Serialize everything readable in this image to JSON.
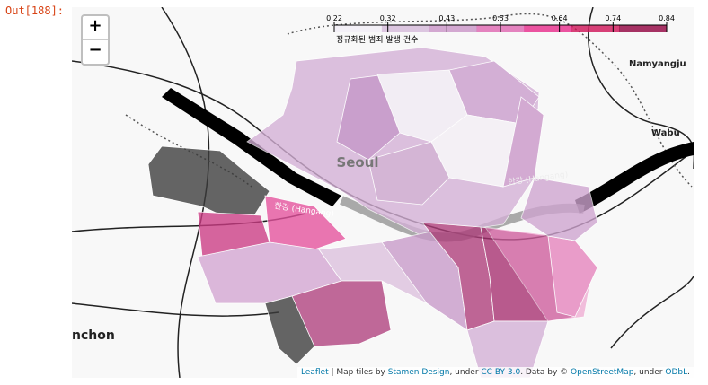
{
  "cell": {
    "prompt": "Out[188]:"
  },
  "zoom": {
    "in": "+",
    "out": "−"
  },
  "legend": {
    "ticks": [
      0.22,
      0.32,
      0.43,
      0.53,
      0.64,
      0.74,
      0.84
    ],
    "colors": [
      "#f1eef6",
      "#d4b9da",
      "#c994c7",
      "#df65b0",
      "#e7298a",
      "#ce1256",
      "#91003f"
    ],
    "caption": "정규화된 범죄 발생 건수"
  },
  "places": {
    "seoul": "Seoul",
    "river_west": "한강 (Hangang)",
    "river_east": "한강 (Hangang)",
    "namyangju": "Namyangju",
    "wabu": "Wabu",
    "incheon": "nchon"
  },
  "attribution": {
    "leaflet": "Leaflet",
    "t1": " | Map tiles by ",
    "stamen": "Stamen Design",
    "t2": ", under ",
    "cc": "CC BY 3.0",
    "t3": ". Data by © ",
    "osm": "OpenStreetMap",
    "t4": ", under ",
    "odbl": "ODbL",
    "t5": "."
  }
}
